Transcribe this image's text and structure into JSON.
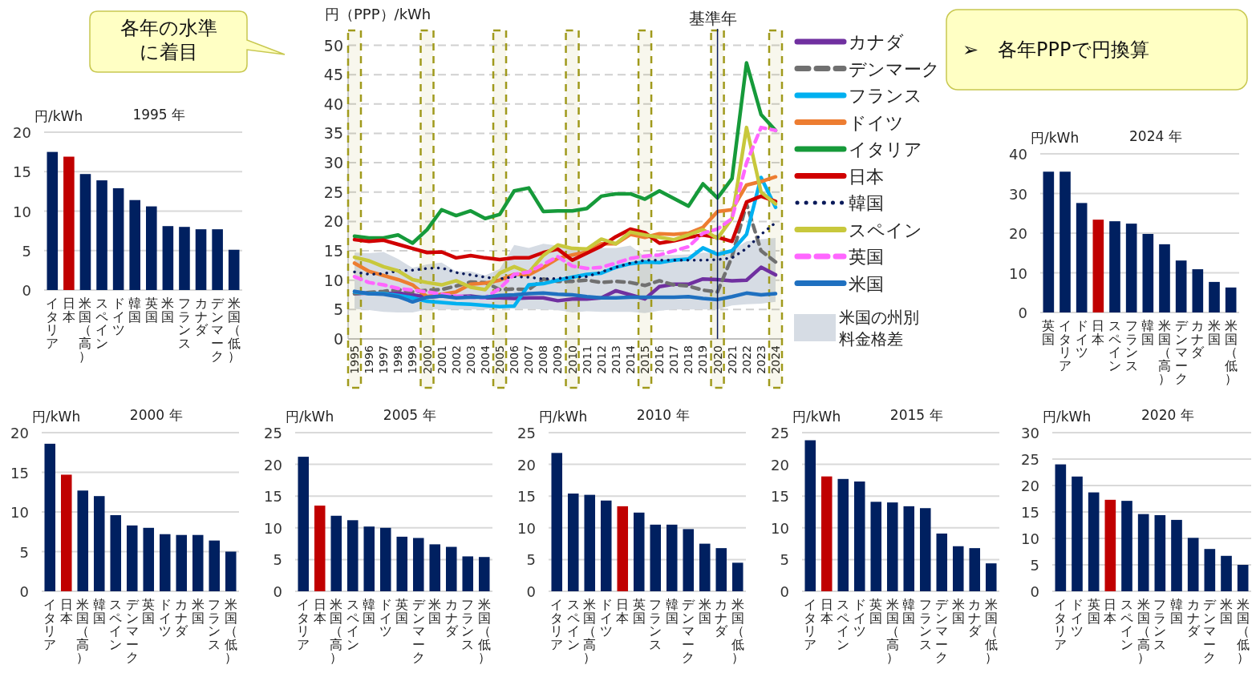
{
  "chart_data": [
    {
      "type": "line",
      "ylabel": "円（PPP）/kWh",
      "categories": [
        "1995",
        "1996",
        "1997",
        "1998",
        "1999",
        "2000",
        "2001",
        "2002",
        "2003",
        "2004",
        "2005",
        "2006",
        "2007",
        "2008",
        "2009",
        "2010",
        "2011",
        "2012",
        "2013",
        "2014",
        "2015",
        "2016",
        "2017",
        "2018",
        "2019",
        "2020",
        "2021",
        "2022",
        "2023",
        "2024"
      ],
      "ylim": [
        0,
        50
      ],
      "yticks": [
        0,
        5,
        10,
        15,
        20,
        25,
        30,
        35,
        40,
        45,
        50
      ],
      "grid": "y",
      "legend": "right",
      "series": [
        {
          "name": "カナダ",
          "color": "#7030a0",
          "line_style": "solid",
          "values": [
            7.7,
            7.8,
            7.7,
            7.8,
            7.5,
            7.1,
            7.3,
            7.2,
            7.3,
            7.0,
            7.0,
            6.9,
            7.0,
            7.0,
            6.5,
            6.8,
            6.8,
            7.0,
            8.2,
            7.5,
            6.8,
            8.9,
            9.3,
            9.3,
            10.2,
            10.1,
            9.9,
            10.0,
            12.2,
            10.9
          ]
        },
        {
          "name": "デンマーク",
          "color": "#707070",
          "line_style": "dashed",
          "values": [
            7.7,
            7.9,
            8.1,
            8.4,
            8.0,
            8.3,
            8.4,
            9.0,
            9.7,
            9.6,
            8.4,
            8.5,
            8.4,
            10.2,
            9.8,
            9.8,
            10.0,
            9.6,
            9.8,
            9.6,
            9.1,
            9.9,
            9.2,
            9.0,
            8.3,
            8.0,
            14.0,
            23.0,
            15.0,
            13.1
          ]
        },
        {
          "name": "フランス",
          "color": "#00b0f0",
          "line_style": "solid",
          "values": [
            8.0,
            7.7,
            7.7,
            7.4,
            7.0,
            6.4,
            6.2,
            6.0,
            5.9,
            5.7,
            5.5,
            5.6,
            9.2,
            9.4,
            10.0,
            10.5,
            11.0,
            11.2,
            12.2,
            12.8,
            13.1,
            13.0,
            13.4,
            13.6,
            15.5,
            14.4,
            15.0,
            17.8,
            27.5,
            22.4
          ]
        },
        {
          "name": "ドイツ",
          "color": "#ed7d31",
          "line_style": "solid",
          "values": [
            12.9,
            11.5,
            10.8,
            10.1,
            9.2,
            7.2,
            7.6,
            8.0,
            9.3,
            9.5,
            10.0,
            11.0,
            10.9,
            12.2,
            13.7,
            14.3,
            14.8,
            16.2,
            16.2,
            17.8,
            17.3,
            17.9,
            17.8,
            18.0,
            19.0,
            21.7,
            22.0,
            26.2,
            26.8,
            27.6
          ]
        },
        {
          "name": "イタリア",
          "color": "#169a3a",
          "line_style": "solid",
          "values": [
            17.5,
            17.2,
            17.2,
            17.7,
            16.3,
            18.6,
            22.0,
            21.0,
            21.8,
            20.5,
            21.2,
            25.2,
            25.7,
            21.7,
            21.8,
            21.8,
            22.2,
            24.3,
            24.7,
            24.7,
            23.8,
            25.2,
            23.9,
            22.6,
            26.4,
            24.0,
            27.3,
            47.0,
            38.2,
            35.5
          ]
        },
        {
          "name": "日本",
          "color": "#d00000",
          "line_style": "solid",
          "values": [
            16.9,
            16.6,
            16.8,
            16.1,
            15.4,
            14.7,
            14.8,
            13.8,
            14.2,
            13.8,
            13.5,
            13.8,
            13.8,
            14.7,
            15.3,
            13.4,
            14.6,
            15.8,
            17.4,
            18.7,
            18.1,
            16.3,
            16.7,
            17.3,
            17.7,
            17.3,
            16.6,
            23.3,
            24.3,
            23.4
          ]
        },
        {
          "name": "韓国",
          "color": "#0a1a5a",
          "line_style": "dotted",
          "values": [
            11.4,
            11.0,
            11.1,
            11.6,
            11.7,
            12.0,
            12.1,
            11.3,
            10.9,
            10.5,
            10.2,
            10.6,
            10.5,
            10.2,
            10.3,
            10.5,
            10.6,
            11.4,
            12.2,
            12.9,
            13.4,
            13.4,
            13.4,
            13.4,
            13.4,
            13.5,
            13.8,
            15.4,
            17.8,
            19.8
          ]
        },
        {
          "name": "スペイン",
          "color": "#c8c83c",
          "line_style": "solid",
          "values": [
            13.9,
            13.3,
            12.3,
            11.6,
            10.1,
            9.6,
            9.2,
            9.9,
            8.8,
            8.4,
            11.2,
            12.3,
            11.3,
            14.2,
            16.0,
            15.4,
            15.3,
            17.0,
            16.2,
            18.2,
            17.7,
            17.3,
            16.9,
            17.7,
            18.6,
            17.1,
            20.5,
            36.0,
            25.0,
            23.0
          ]
        },
        {
          "name": "英国",
          "color": "#ff66ff",
          "line_style": "dashed",
          "values": [
            10.6,
            9.6,
            9.2,
            8.6,
            8.3,
            8.0,
            7.6,
            7.3,
            7.1,
            7.0,
            8.6,
            11.0,
            11.4,
            12.7,
            14.0,
            12.4,
            12.0,
            12.2,
            12.9,
            13.7,
            14.1,
            14.3,
            15.0,
            15.7,
            18.0,
            18.7,
            20.5,
            30.0,
            36.0,
            35.5
          ]
        },
        {
          "name": "米国",
          "color": "#1f70c0",
          "line_style": "solid",
          "values": [
            8.1,
            7.7,
            7.6,
            7.2,
            6.3,
            7.1,
            7.3,
            7.0,
            7.1,
            7.1,
            7.4,
            7.5,
            7.7,
            7.8,
            7.6,
            7.5,
            7.2,
            7.0,
            7.0,
            7.1,
            7.1,
            7.1,
            7.1,
            7.2,
            6.9,
            6.7,
            7.2,
            7.8,
            7.5,
            7.7
          ],
          "lower": [
            5.1,
            4.9,
            4.6,
            4.5,
            4.5,
            5.0,
            5.0,
            5.0,
            5.0,
            5.0,
            5.4,
            5.1,
            5.1,
            5.0,
            4.9,
            4.5,
            4.7,
            4.6,
            4.6,
            4.6,
            4.4,
            4.8,
            5.0,
            5.0,
            5.0,
            5.0,
            5.7,
            5.9,
            6.0,
            6.3
          ],
          "upper": [
            14.7,
            14.6,
            14.8,
            13.6,
            12.1,
            12.7,
            13.0,
            11.5,
            11.5,
            10.8,
            11.9,
            16.0,
            15.5,
            16.2,
            15.9,
            15.2,
            15.2,
            15.5,
            15.5,
            15.9,
            14.0,
            14.3,
            14.3,
            14.4,
            14.7,
            14.6,
            15.1,
            16.6,
            17.0,
            17.2
          ]
        }
      ],
      "bands": [
        {
          "axis": "x",
          "from": "1995",
          "to": "1995",
          "color": "#a09a1c"
        },
        {
          "axis": "x",
          "from": "2000",
          "to": "2000",
          "color": "#a09a1c"
        },
        {
          "axis": "x",
          "from": "2005",
          "to": "2005",
          "color": "#a09a1c"
        },
        {
          "axis": "x",
          "from": "2010",
          "to": "2010",
          "color": "#a09a1c"
        },
        {
          "axis": "x",
          "from": "2015",
          "to": "2015",
          "color": "#a09a1c"
        },
        {
          "axis": "x",
          "from": "2020",
          "to": "2020",
          "color": "#a09a1c"
        },
        {
          "axis": "x",
          "from": "2024",
          "to": "2024",
          "color": "#a09a1c"
        }
      ],
      "ref_lines": [
        {
          "axis": "x",
          "value": "2020",
          "label": "基準年",
          "color": "#0a1a5a"
        }
      ],
      "annotations": [
        "各年の水準に着目",
        "➢　各年PPPで円換算",
        "米国の州別料金格差"
      ]
    },
    {
      "type": "bar",
      "title": "1995 年",
      "ylabel": "円/kWh",
      "categories": [
        "イタリア",
        "日本",
        "米国（高）",
        "スペイン",
        "ドイツ",
        "韓国",
        "英国",
        "米国",
        "フランス",
        "カナダ",
        "デンマーク",
        "米国（低）"
      ],
      "values": [
        17.5,
        16.9,
        14.7,
        13.9,
        12.9,
        11.4,
        10.6,
        8.1,
        8.0,
        7.7,
        7.7,
        5.1
      ],
      "colors": [
        "#002060",
        "#c00000",
        "#002060",
        "#002060",
        "#002060",
        "#002060",
        "#002060",
        "#002060",
        "#002060",
        "#002060",
        "#002060",
        "#002060"
      ],
      "ylim": [
        0,
        20
      ],
      "yticks": [
        0,
        5,
        10,
        15,
        20
      ],
      "grid": "y"
    },
    {
      "type": "bar",
      "title": "2024 年",
      "ylabel": "円/kWh",
      "categories": [
        "英国",
        "イタリア",
        "ドイツ",
        "日本",
        "スペイン",
        "フランス",
        "韓国",
        "米国（高）",
        "デンマーク",
        "カナダ",
        "米国",
        "米国（低）"
      ],
      "values": [
        35.5,
        35.5,
        27.6,
        23.4,
        23.0,
        22.4,
        19.8,
        17.2,
        13.1,
        10.9,
        7.7,
        6.3
      ],
      "colors": [
        "#002060",
        "#002060",
        "#002060",
        "#c00000",
        "#002060",
        "#002060",
        "#002060",
        "#002060",
        "#002060",
        "#002060",
        "#002060",
        "#002060"
      ],
      "ylim": [
        0,
        40
      ],
      "yticks": [
        0,
        10,
        20,
        30,
        40
      ],
      "grid": "y"
    },
    {
      "type": "bar",
      "title": "2000 年",
      "ylabel": "円/kWh",
      "categories": [
        "イタリア",
        "日本",
        "米国（高）",
        "韓国",
        "スペイン",
        "デンマーク",
        "英国",
        "ドイツ",
        "カナダ",
        "米国",
        "フランス",
        "米国（低）"
      ],
      "values": [
        18.6,
        14.7,
        12.7,
        12.0,
        9.6,
        8.3,
        8.0,
        7.2,
        7.1,
        7.1,
        6.4,
        5.0
      ],
      "colors": [
        "#002060",
        "#c00000",
        "#002060",
        "#002060",
        "#002060",
        "#002060",
        "#002060",
        "#002060",
        "#002060",
        "#002060",
        "#002060",
        "#002060"
      ],
      "ylim": [
        0,
        20
      ],
      "yticks": [
        0,
        5,
        10,
        15,
        20
      ],
      "grid": "y"
    },
    {
      "type": "bar",
      "title": "2005 年",
      "ylabel": "円/kWh",
      "categories": [
        "イタリア",
        "日本",
        "米国（高）",
        "スペイン",
        "韓国",
        "ドイツ",
        "英国",
        "デンマーク",
        "米国",
        "カナダ",
        "フランス",
        "米国（低）"
      ],
      "values": [
        21.2,
        13.5,
        11.9,
        11.2,
        10.2,
        10.0,
        8.6,
        8.4,
        7.4,
        7.0,
        5.5,
        5.4
      ],
      "colors": [
        "#002060",
        "#c00000",
        "#002060",
        "#002060",
        "#002060",
        "#002060",
        "#002060",
        "#002060",
        "#002060",
        "#002060",
        "#002060",
        "#002060"
      ],
      "ylim": [
        0,
        25
      ],
      "yticks": [
        0,
        5,
        10,
        15,
        20,
        25
      ],
      "grid": "y"
    },
    {
      "type": "bar",
      "title": "2010 年",
      "ylabel": "円/kWh",
      "categories": [
        "イタリア",
        "スペイン",
        "米国（高）",
        "ドイツ",
        "日本",
        "英国",
        "フランス",
        "韓国",
        "デンマーク",
        "米国",
        "カナダ",
        "米国（低）"
      ],
      "values": [
        21.8,
        15.4,
        15.2,
        14.3,
        13.4,
        12.4,
        10.5,
        10.5,
        9.8,
        7.5,
        6.8,
        4.5
      ],
      "colors": [
        "#002060",
        "#002060",
        "#002060",
        "#002060",
        "#c00000",
        "#002060",
        "#002060",
        "#002060",
        "#002060",
        "#002060",
        "#002060",
        "#002060"
      ],
      "ylim": [
        0,
        25
      ],
      "yticks": [
        0,
        5,
        10,
        15,
        20,
        25
      ],
      "grid": "y"
    },
    {
      "type": "bar",
      "title": "2015 年",
      "ylabel": "円/kWh",
      "categories": [
        "イタリア",
        "日本",
        "スペイン",
        "ドイツ",
        "英国",
        "米国（高）",
        "韓国",
        "フランス",
        "デンマーク",
        "米国",
        "カナダ",
        "米国（低）"
      ],
      "values": [
        23.8,
        18.1,
        17.7,
        17.3,
        14.1,
        14.0,
        13.4,
        13.1,
        9.1,
        7.1,
        6.8,
        4.4
      ],
      "colors": [
        "#002060",
        "#c00000",
        "#002060",
        "#002060",
        "#002060",
        "#002060",
        "#002060",
        "#002060",
        "#002060",
        "#002060",
        "#002060",
        "#002060"
      ],
      "ylim": [
        0,
        25
      ],
      "yticks": [
        0,
        5,
        10,
        15,
        20,
        25
      ],
      "grid": "y"
    },
    {
      "type": "bar",
      "title": "2020 年",
      "ylabel": "円/kWh",
      "categories": [
        "イタリア",
        "ドイツ",
        "英国",
        "日本",
        "スペイン",
        "米国（高）",
        "フランス",
        "韓国",
        "カナダ",
        "デンマーク",
        "米国",
        "米国（低）"
      ],
      "values": [
        24.0,
        21.7,
        18.7,
        17.3,
        17.1,
        14.6,
        14.4,
        13.5,
        10.1,
        8.0,
        6.7,
        5.0
      ],
      "colors": [
        "#002060",
        "#002060",
        "#002060",
        "#c00000",
        "#002060",
        "#002060",
        "#002060",
        "#002060",
        "#002060",
        "#002060",
        "#002060",
        "#002060"
      ],
      "ylim": [
        0,
        30
      ],
      "yticks": [
        0,
        5,
        10,
        15,
        20,
        25,
        30
      ],
      "grid": "y"
    }
  ]
}
